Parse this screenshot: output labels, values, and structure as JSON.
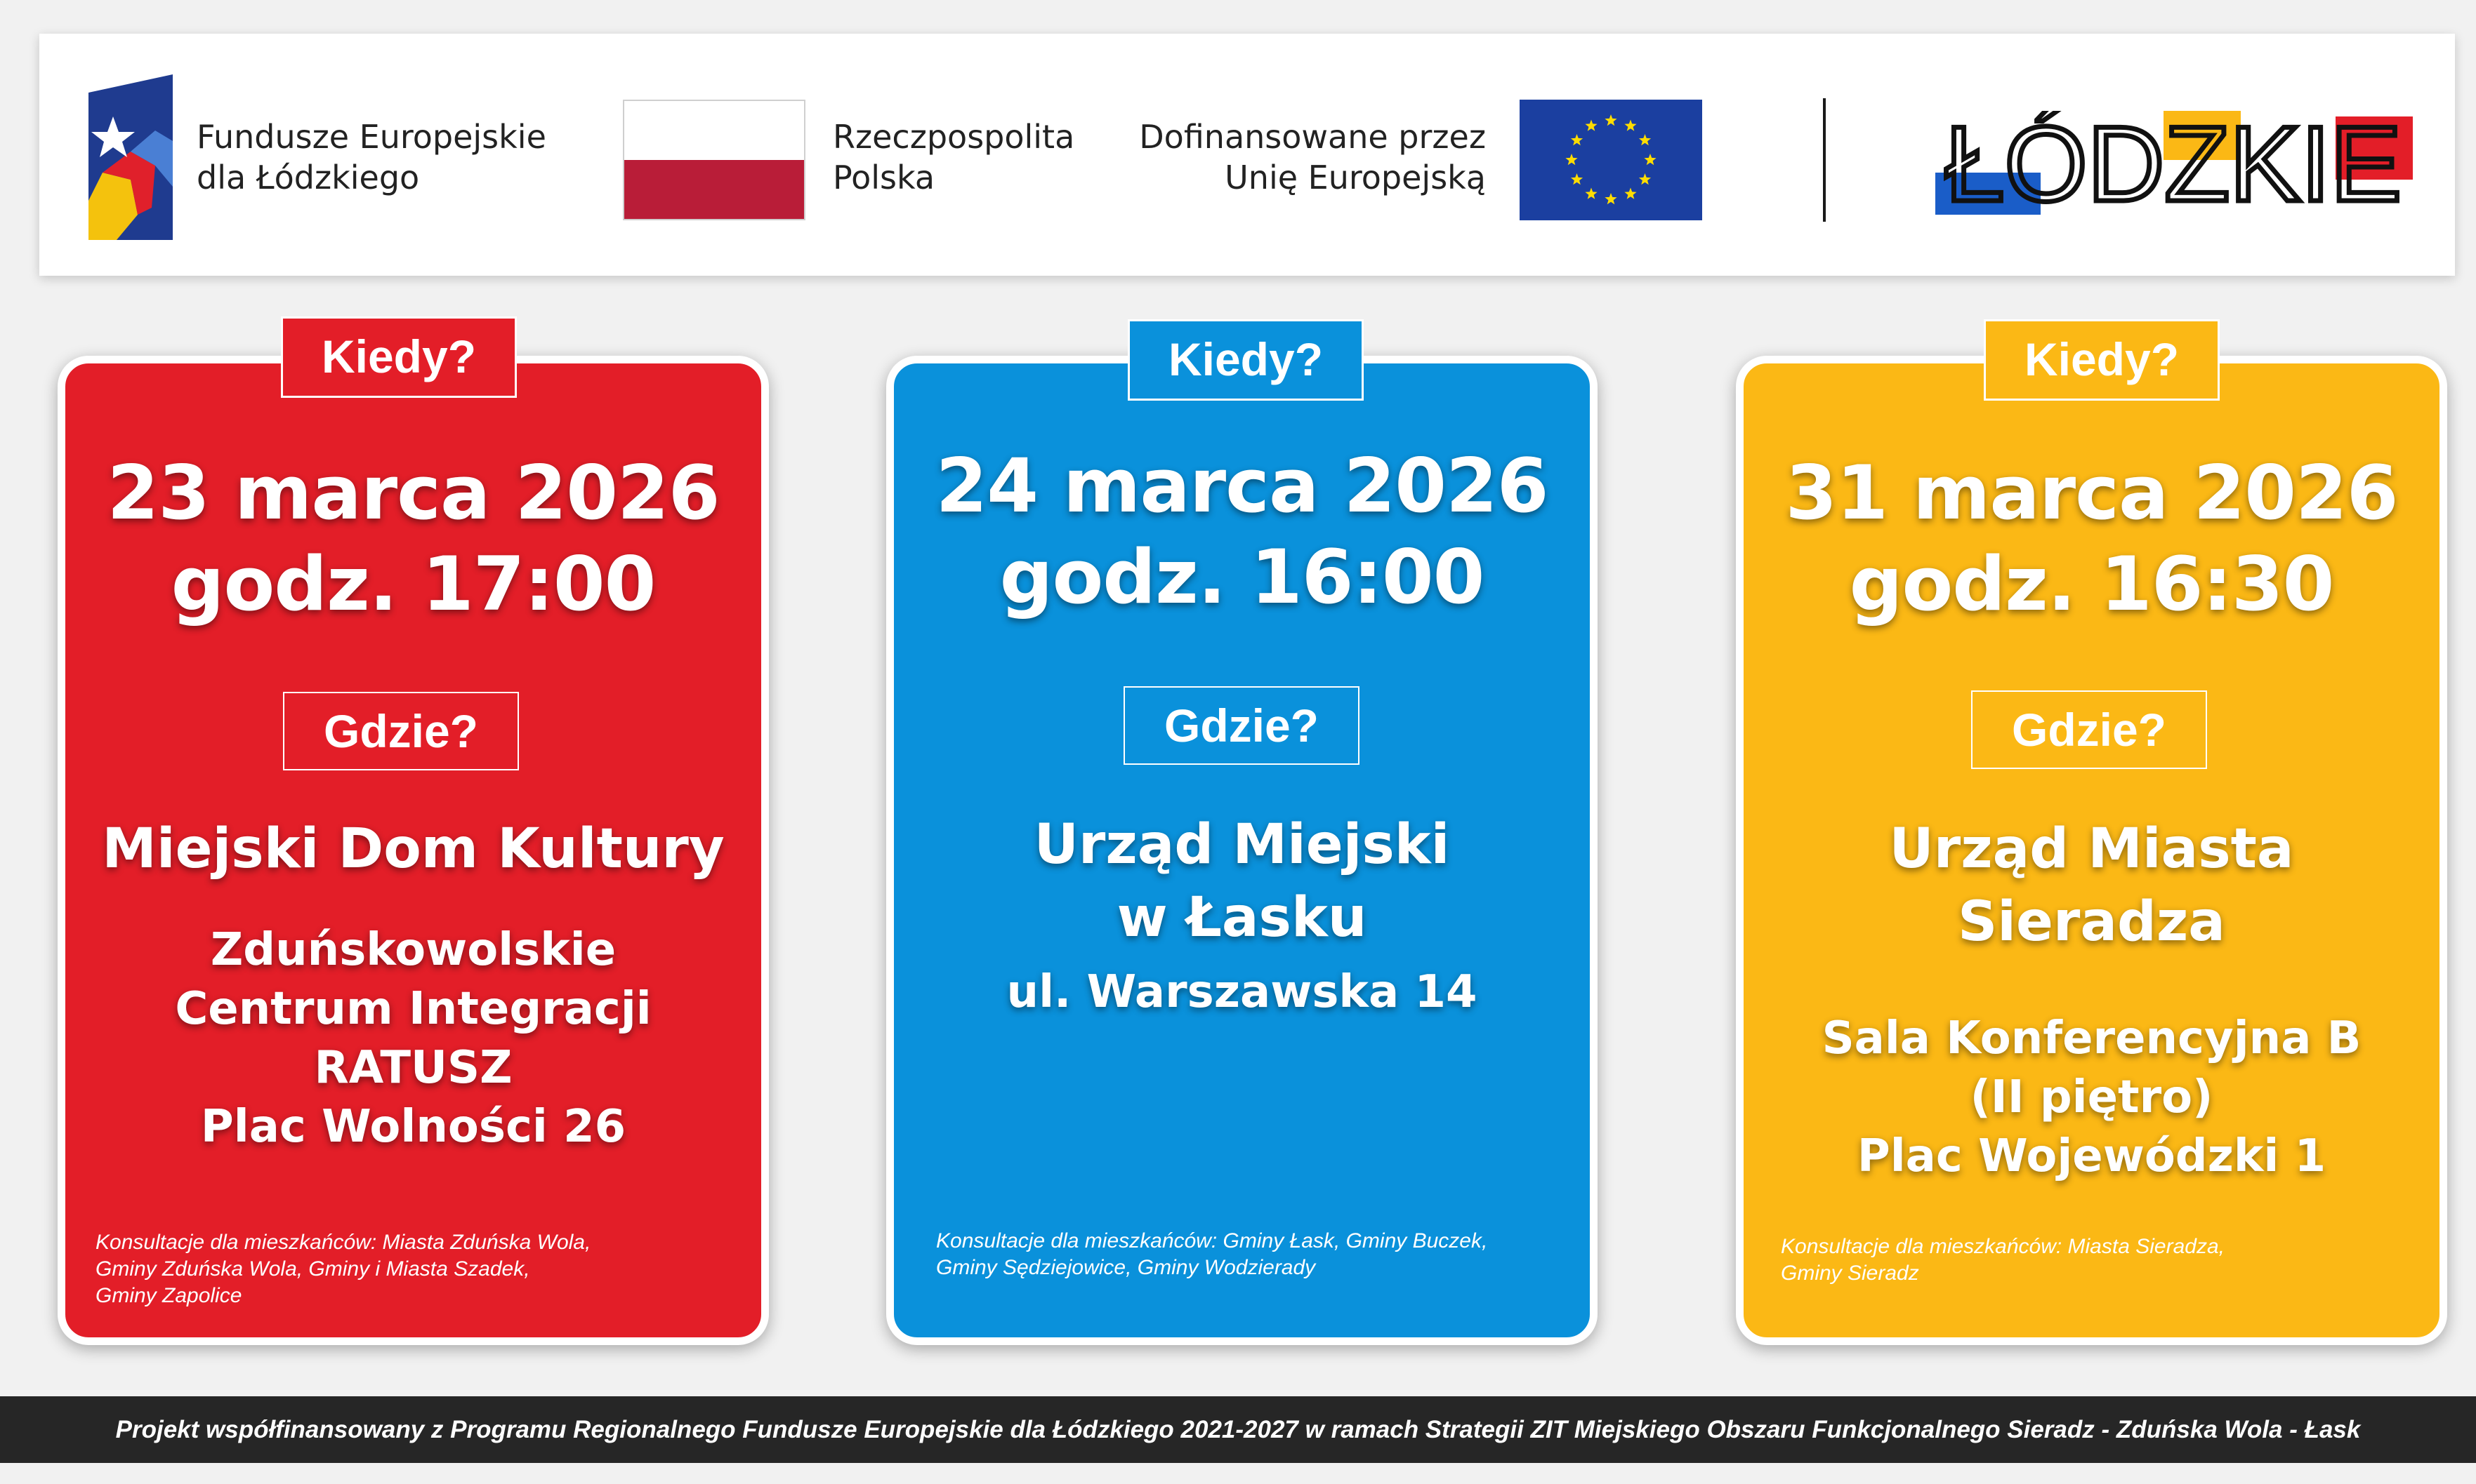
{
  "header": {
    "fe_text": [
      "Fundusze Europejskie",
      "dla Łódzkiego"
    ],
    "pl_text": [
      "Rzeczpospolita",
      "Polska"
    ],
    "eu_text": [
      "Dofinansowane przez",
      "Unię Europejską"
    ],
    "region_logo_text": "ŁÓDZKIE"
  },
  "colors": {
    "red": "#e31e28",
    "blue": "#0a91db",
    "yellow": "#fbb815",
    "footer": "#262626"
  },
  "cards": [
    {
      "when_label": "Kiedy?",
      "date": "23 marca 2026",
      "time": "godz. 17:00",
      "where_label": "Gdzie?",
      "venue": [
        "Miejski Dom Kultury"
      ],
      "address": [
        "Zduńskowolskie",
        "Centrum Integracji",
        "RATUSZ",
        "Plac Wolności 26"
      ],
      "consultation": "Konsultacje dla mieszkańców: Miasta Zduńska Wola,\nGminy Zduńska Wola, Gminy i Miasta Szadek,\nGminy Zapolice"
    },
    {
      "when_label": "Kiedy?",
      "date": "24 marca 2026",
      "time": "godz. 16:00",
      "where_label": "Gdzie?",
      "venue": [
        "Urząd Miejski",
        "w Łasku"
      ],
      "address": [
        "ul. Warszawska 14"
      ],
      "consultation": "Konsultacje dla mieszkańców: Gminy Łask, Gminy Buczek,\nGminy Sędziejowice, Gminy Wodzierady"
    },
    {
      "when_label": "Kiedy?",
      "date": "31 marca 2026",
      "time": "godz. 16:30",
      "where_label": "Gdzie?",
      "venue": [
        "Urząd Miasta",
        "Sieradza"
      ],
      "address": [
        "Sala Konferencyjna B",
        "(II piętro)",
        "Plac Wojewódzki 1"
      ],
      "consultation": "Konsultacje dla mieszkańców: Miasta Sieradza,\nGminy Sieradz"
    }
  ],
  "footer": {
    "text": "Projekt współfinansowany z Programu Regionalnego Fundusze Europejskie dla Łódzkiego 2021-2027 w ramach Strategii ZIT Miejskiego Obszaru  Funkcjonalnego Sieradz - Zduńska Wola - Łask"
  }
}
